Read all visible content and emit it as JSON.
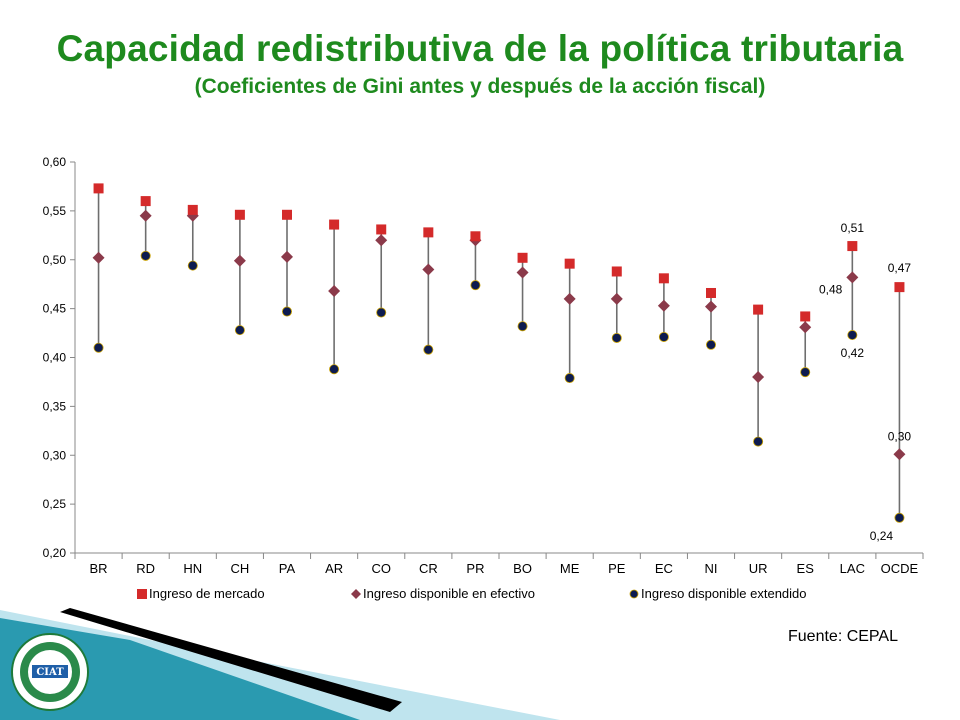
{
  "slide": {
    "title": "Capacidad redistributiva de la política tributaria",
    "subtitle": "(Coeficientes de Gini antes y después de la acción fiscal)",
    "source": "Fuente: CEPAL",
    "logo_text": "CIAT"
  },
  "chart_data": {
    "type": "scatter",
    "title": "",
    "xlabel": "",
    "ylabel": "",
    "ylim": [
      0.2,
      0.6
    ],
    "yticks": [
      "0,20",
      "0,25",
      "0,30",
      "0,35",
      "0,40",
      "0,45",
      "0,50",
      "0,55",
      "0,60"
    ],
    "grid": false,
    "legend_position": "bottom",
    "categories": [
      "BR",
      "RD",
      "HN",
      "CH",
      "PA",
      "AR",
      "CO",
      "CR",
      "PR",
      "BO",
      "ME",
      "PE",
      "EC",
      "NI",
      "UR",
      "ES",
      "LAC",
      "OCDE"
    ],
    "series": [
      {
        "name": "Ingreso de mercado",
        "marker": "square",
        "color": "#d42a2a",
        "values": [
          0.573,
          0.56,
          0.551,
          0.546,
          0.546,
          0.536,
          0.531,
          0.528,
          0.524,
          0.502,
          0.496,
          0.488,
          0.481,
          0.466,
          0.449,
          0.442,
          0.514,
          0.472
        ]
      },
      {
        "name": "Ingreso disponible en efectivo",
        "marker": "diamond",
        "color": "#8b3a4a",
        "values": [
          0.502,
          0.545,
          0.545,
          0.499,
          0.503,
          0.468,
          0.52,
          0.49,
          0.52,
          0.487,
          0.46,
          0.46,
          0.453,
          0.452,
          0.38,
          0.431,
          0.482,
          0.301
        ]
      },
      {
        "name": "Ingreso disponible extendido",
        "marker": "circle",
        "color": "#0d1b4f",
        "values": [
          0.41,
          0.504,
          0.494,
          0.428,
          0.447,
          0.388,
          0.446,
          0.408,
          0.474,
          0.432,
          0.379,
          0.42,
          0.421,
          0.413,
          0.314,
          0.385,
          0.423,
          0.236
        ]
      }
    ],
    "annotations": [
      {
        "category": "LAC",
        "series": "Ingreso de mercado",
        "text": "0,51"
      },
      {
        "category": "LAC",
        "series": "Ingreso disponible en efectivo",
        "text": "0,48"
      },
      {
        "category": "LAC",
        "series": "Ingreso disponible extendido",
        "text": "0,42"
      },
      {
        "category": "OCDE",
        "series": "Ingreso de mercado",
        "text": "0,47"
      },
      {
        "category": "OCDE",
        "series": "Ingreso disponible en efectivo",
        "text": "0,30"
      },
      {
        "category": "OCDE",
        "series": "Ingreso disponible extendido",
        "text": "0,24"
      }
    ]
  },
  "colors": {
    "title": "#1e8a1e",
    "connector": "#6e6e6e",
    "decor_teal": "#2a9ab0",
    "decor_dark": "#000000"
  }
}
